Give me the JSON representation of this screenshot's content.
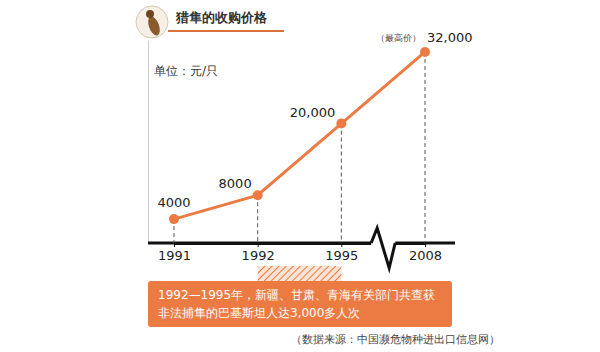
{
  "chart_data": {
    "type": "line",
    "title": "猎隼的收购价格",
    "ylabel": "单位：元/只",
    "categories": [
      "1991",
      "1992",
      "1995",
      "2008"
    ],
    "values": [
      4000,
      8000,
      20000,
      32000
    ],
    "value_labels": [
      "4000",
      "8000",
      "20,000",
      "32,000"
    ],
    "data_labels": true,
    "color": "#ec7b43",
    "marker": "circle",
    "ylim": [
      0,
      34000
    ],
    "yticks": [],
    "tick_labels": "x",
    "annotations": [
      "（最高价）",
      "1992—1995年，新疆、甘肃、青海有关部门共查获非法捕隼的巴基斯坦人达3,000多人次"
    ],
    "source": "（数据来源：中国濒危物种进出口信息网）"
  }
}
